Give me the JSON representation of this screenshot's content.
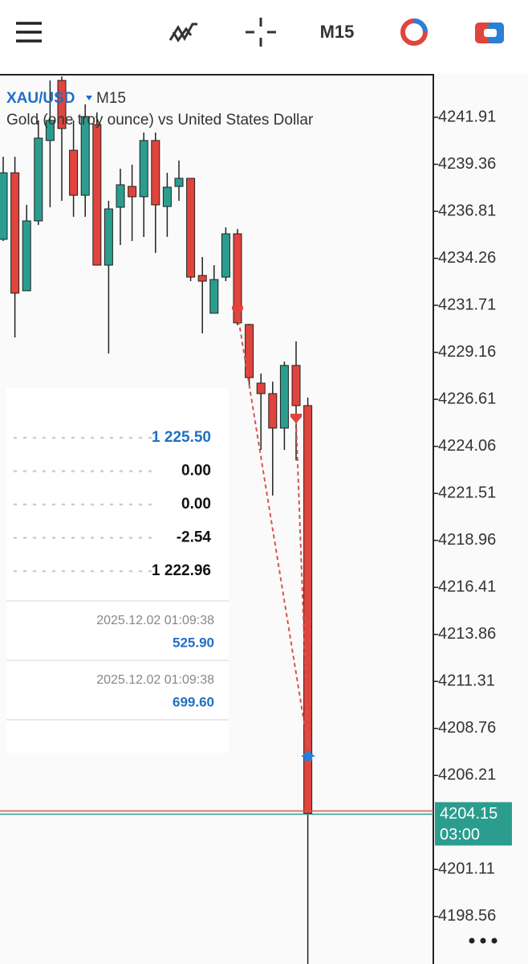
{
  "toolbar": {
    "timeframe": "M15"
  },
  "chart_data": {
    "type": "candlestick",
    "symbol": "XAU/USD",
    "timeframe": "M15",
    "description": "Gold (one troy ounce) vs United States Dollar",
    "bull_color": "#2a9d8f",
    "bear_color": "#e0443c",
    "candles": [
      {
        "open": 4235.29,
        "high": 4239.77,
        "low": 4235.2,
        "close": 4238.9
      },
      {
        "open": 4238.9,
        "high": 4239.77,
        "low": 4229.97,
        "close": 4232.37
      },
      {
        "open": 4232.5,
        "high": 4237.16,
        "low": 4232.5,
        "close": 4236.29
      },
      {
        "open": 4236.29,
        "high": 4241.74,
        "low": 4236.07,
        "close": 4240.78
      },
      {
        "open": 4240.65,
        "high": 4243.91,
        "low": 4237.03,
        "close": 4241.74
      },
      {
        "open": 4243.91,
        "high": 4244.13,
        "low": 4237.38,
        "close": 4241.3
      },
      {
        "open": 4240.12,
        "high": 4241.74,
        "low": 4236.51,
        "close": 4237.68
      },
      {
        "open": 4237.68,
        "high": 4242.61,
        "low": 4236.51,
        "close": 4241.95
      },
      {
        "open": 4241.52,
        "high": 4242.17,
        "low": 4233.89,
        "close": 4233.89
      },
      {
        "open": 4233.89,
        "high": 4237.38,
        "low": 4229.1,
        "close": 4236.94
      },
      {
        "open": 4237.03,
        "high": 4239.12,
        "low": 4234.98,
        "close": 4238.25
      },
      {
        "open": 4238.16,
        "high": 4239.34,
        "low": 4235.2,
        "close": 4237.6
      },
      {
        "open": 4237.6,
        "high": 4241.08,
        "low": 4235.42,
        "close": 4240.65
      },
      {
        "open": 4240.65,
        "high": 4241.08,
        "low": 4234.55,
        "close": 4237.16
      },
      {
        "open": 4237.07,
        "high": 4238.9,
        "low": 4235.42,
        "close": 4238.12
      },
      {
        "open": 4238.16,
        "high": 4239.56,
        "low": 4237.38,
        "close": 4238.6
      },
      {
        "open": 4238.6,
        "high": 4238.6,
        "low": 4233.02,
        "close": 4233.24
      },
      {
        "open": 4233.33,
        "high": 4234.33,
        "low": 4230.19,
        "close": 4233.02
      },
      {
        "open": 4231.28,
        "high": 4233.89,
        "low": 4231.28,
        "close": 4233.11
      },
      {
        "open": 4233.24,
        "high": 4235.94,
        "low": 4233.02,
        "close": 4235.59
      },
      {
        "open": 4235.59,
        "high": 4235.85,
        "low": 4230.63,
        "close": 4230.76
      },
      {
        "open": 4230.67,
        "high": 4230.71,
        "low": 4227.36,
        "close": 4227.79
      },
      {
        "open": 4227.49,
        "high": 4228.01,
        "low": 4223.87,
        "close": 4226.92
      },
      {
        "open": 4226.92,
        "high": 4227.57,
        "low": 4221.39,
        "close": 4225.05
      },
      {
        "open": 4225.05,
        "high": 4228.66,
        "low": 4223.87,
        "close": 4228.45
      },
      {
        "open": 4228.45,
        "high": 4229.75,
        "low": 4223.3,
        "close": 4226.27
      },
      {
        "open": 4226.27,
        "high": 4226.7,
        "low": 4195.98,
        "close": 4204.15
      }
    ],
    "ylim": [
      4195.98,
      4244.22
    ],
    "yticks": [
      4241.91,
      4239.36,
      4236.81,
      4234.26,
      4231.71,
      4229.16,
      4226.61,
      4224.06,
      4221.51,
      4218.96,
      4216.41,
      4213.86,
      4211.31,
      4208.76,
      4206.21,
      4201.11,
      4198.56
    ],
    "current_price": 4204.15,
    "current_time": "03:00"
  },
  "panel": {
    "rows": [
      "1 225.50",
      "0.00",
      "0.00",
      "-2.54",
      "1 222.96"
    ],
    "deals": [
      {
        "time": "2025.12.02 01:09:38",
        "value": "525.90"
      },
      {
        "time": "2025.12.02 01:09:38",
        "value": "699.60"
      }
    ]
  }
}
